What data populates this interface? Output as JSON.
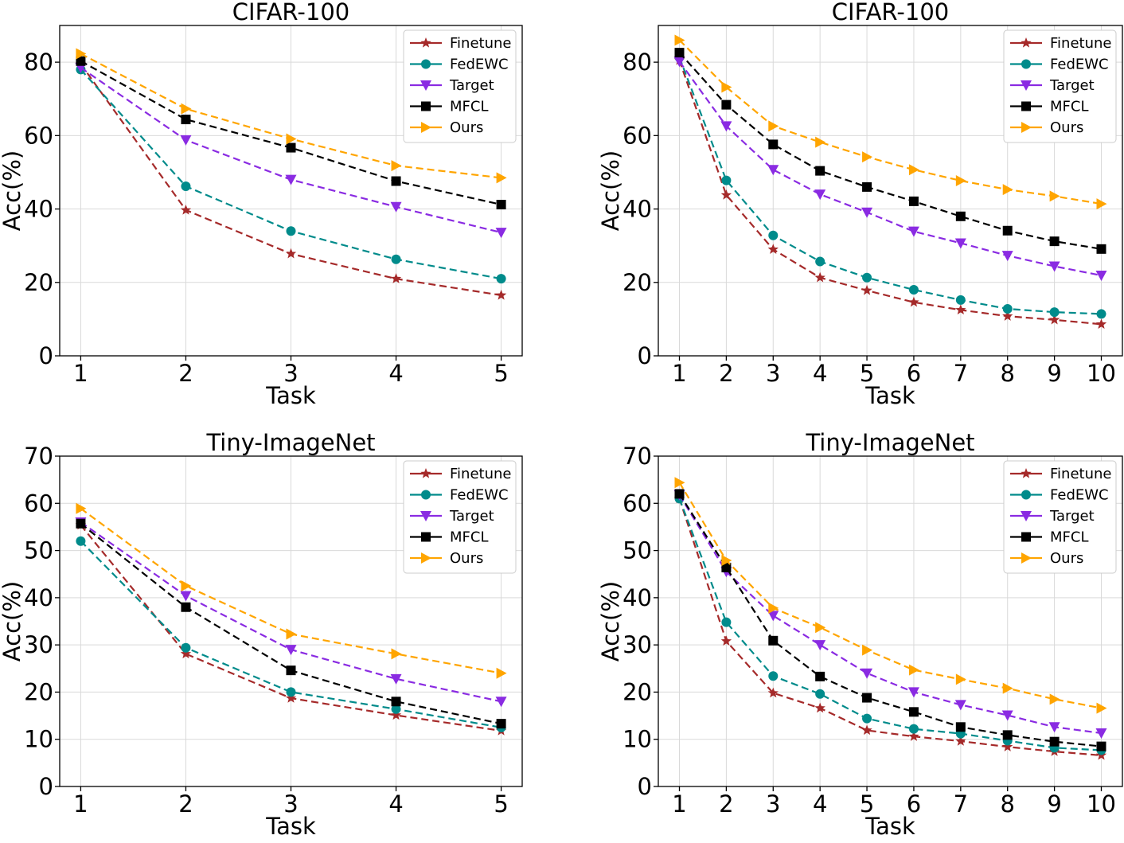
{
  "chart_data": [
    {
      "type": "line",
      "title": "CIFAR-100",
      "xlabel": "Task",
      "ylabel": "Acc(%)",
      "x": [
        1,
        2,
        3,
        4,
        5
      ],
      "xlim": [
        0.8,
        5.2
      ],
      "ylim": [
        0,
        90
      ],
      "yticks": [
        0,
        20,
        40,
        60,
        80
      ],
      "grid": true,
      "legend_position": "top-right",
      "series": [
        {
          "name": "Finetune",
          "color": "#a52a2a",
          "marker": "star",
          "values": [
            79.5,
            39.7,
            27.8,
            21.0,
            16.5
          ]
        },
        {
          "name": "FedEWC",
          "color": "#008b8b",
          "marker": "circle",
          "values": [
            78.0,
            46.2,
            34.0,
            26.3,
            21.0
          ]
        },
        {
          "name": "Target",
          "color": "#8a2be2",
          "marker": "triangle-down",
          "values": [
            78.5,
            58.8,
            48.0,
            40.6,
            33.6
          ]
        },
        {
          "name": "MFCL",
          "color": "#000000",
          "marker": "square",
          "values": [
            80.3,
            64.4,
            56.7,
            47.6,
            41.2
          ]
        },
        {
          "name": "Ours",
          "color": "#ffa500",
          "marker": "triangle-right",
          "values": [
            82.3,
            67.3,
            59.1,
            51.8,
            48.5
          ]
        }
      ]
    },
    {
      "type": "line",
      "title": "CIFAR-100",
      "xlabel": "Task",
      "ylabel": "Acc(%)",
      "x": [
        1,
        2,
        3,
        4,
        5,
        6,
        7,
        8,
        9,
        10
      ],
      "xlim": [
        0.55,
        10.45
      ],
      "ylim": [
        0,
        90
      ],
      "yticks": [
        0,
        20,
        40,
        60,
        80
      ],
      "grid": true,
      "legend_position": "top-right",
      "series": [
        {
          "name": "Finetune",
          "color": "#a52a2a",
          "marker": "star",
          "values": [
            80.5,
            43.8,
            29.0,
            21.3,
            17.8,
            14.6,
            12.5,
            10.8,
            9.8,
            8.6
          ]
        },
        {
          "name": "FedEWC",
          "color": "#008b8b",
          "marker": "circle",
          "values": [
            81.3,
            47.8,
            32.8,
            25.7,
            21.3,
            18.0,
            15.2,
            12.8,
            11.9,
            11.4
          ]
        },
        {
          "name": "Target",
          "color": "#8a2be2",
          "marker": "triangle-down",
          "values": [
            80.2,
            62.6,
            50.7,
            44.0,
            39.1,
            33.9,
            30.7,
            27.3,
            24.4,
            21.9
          ]
        },
        {
          "name": "MFCL",
          "color": "#000000",
          "marker": "square",
          "values": [
            82.6,
            68.4,
            57.6,
            50.4,
            46.0,
            42.1,
            38.0,
            34.1,
            31.2,
            29.1
          ]
        },
        {
          "name": "Ours",
          "color": "#ffa500",
          "marker": "triangle-right",
          "values": [
            86.0,
            73.2,
            62.6,
            58.2,
            54.2,
            50.7,
            47.7,
            45.3,
            43.5,
            41.4
          ]
        }
      ]
    },
    {
      "type": "line",
      "title": "Tiny-ImageNet",
      "xlabel": "Task",
      "ylabel": "Acc(%)",
      "x": [
        1,
        2,
        3,
        4,
        5
      ],
      "xlim": [
        0.8,
        5.2
      ],
      "ylim": [
        0,
        70
      ],
      "yticks": [
        0,
        10,
        20,
        30,
        40,
        50,
        60,
        70
      ],
      "grid": true,
      "legend_position": "top-right",
      "series": [
        {
          "name": "Finetune",
          "color": "#a52a2a",
          "marker": "star",
          "values": [
            55.4,
            28.1,
            18.7,
            15.1,
            11.8
          ]
        },
        {
          "name": "FedEWC",
          "color": "#008b8b",
          "marker": "circle",
          "values": [
            52.0,
            29.4,
            20.0,
            16.4,
            12.5
          ]
        },
        {
          "name": "Target",
          "color": "#8a2be2",
          "marker": "triangle-down",
          "values": [
            56.0,
            40.4,
            29.0,
            22.8,
            18.0
          ]
        },
        {
          "name": "MFCL",
          "color": "#000000",
          "marker": "square",
          "values": [
            55.7,
            38.0,
            24.6,
            18.0,
            13.3
          ]
        },
        {
          "name": "Ours",
          "color": "#ffa500",
          "marker": "triangle-right",
          "values": [
            58.9,
            42.5,
            32.3,
            28.1,
            24.0
          ]
        }
      ]
    },
    {
      "type": "line",
      "title": "Tiny-ImageNet",
      "xlabel": "Task",
      "ylabel": "Acc(%)",
      "x": [
        1,
        2,
        3,
        4,
        5,
        6,
        7,
        8,
        9,
        10
      ],
      "xlim": [
        0.55,
        10.45
      ],
      "ylim": [
        0,
        70
      ],
      "yticks": [
        0,
        10,
        20,
        30,
        40,
        50,
        60,
        70
      ],
      "grid": true,
      "legend_position": "top-right",
      "series": [
        {
          "name": "Finetune",
          "color": "#a52a2a",
          "marker": "star",
          "values": [
            61.0,
            30.8,
            19.8,
            16.6,
            11.9,
            10.6,
            9.6,
            8.4,
            7.4,
            6.6
          ]
        },
        {
          "name": "FedEWC",
          "color": "#008b8b",
          "marker": "circle",
          "values": [
            61.0,
            34.8,
            23.4,
            19.6,
            14.4,
            12.2,
            11.2,
            9.7,
            8.2,
            7.7
          ]
        },
        {
          "name": "Target",
          "color": "#8a2be2",
          "marker": "triangle-down",
          "values": [
            61.8,
            45.5,
            36.2,
            30.0,
            24.0,
            20.0,
            17.3,
            15.1,
            12.6,
            11.3
          ]
        },
        {
          "name": "MFCL",
          "color": "#000000",
          "marker": "square",
          "values": [
            62.0,
            46.4,
            30.9,
            23.3,
            18.8,
            15.8,
            12.6,
            10.9,
            9.5,
            8.5
          ]
        },
        {
          "name": "Ours",
          "color": "#ffa500",
          "marker": "triangle-right",
          "values": [
            64.4,
            47.9,
            37.8,
            33.7,
            28.9,
            24.7,
            22.7,
            20.8,
            18.5,
            16.6
          ]
        }
      ]
    }
  ]
}
